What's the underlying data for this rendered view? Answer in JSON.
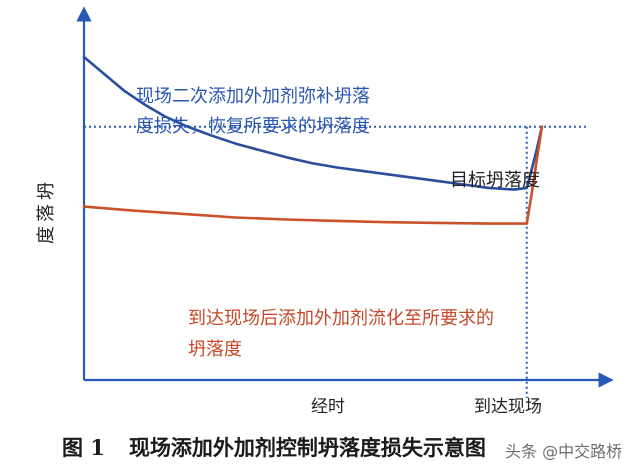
{
  "figure": {
    "number": "图 1",
    "title": "现场添加外加剂控制坍落度损失示意图"
  },
  "watermark": "头条 @中交路桥",
  "colors": {
    "axis": "#2a5ab8",
    "blue_series": "#2a4e9c",
    "red_series": "#c9522a",
    "blue_text": "#2a56b0",
    "red_text": "#c8482a",
    "target_line": "#2a5ab8",
    "text_dark": "#222222"
  },
  "chart_data": {
    "type": "line",
    "title": "",
    "xlabel": "经时",
    "ylabel": "坍落度",
    "x_ticks": [
      "到达现场"
    ],
    "xlim": [
      0,
      100
    ],
    "ylim": [
      0,
      100
    ],
    "grid": false,
    "reference_lines": [
      {
        "orientation": "horizontal",
        "value": 74.5,
        "label": "目标坍落度",
        "style": "dotted"
      },
      {
        "orientation": "vertical",
        "value": 87.5,
        "label": "到达现场",
        "style": "dotted"
      }
    ],
    "series": [
      {
        "color": "#2a4e9c",
        "x": [
          0,
          4,
          8,
          12,
          16,
          20,
          25,
          30,
          35,
          40,
          45,
          50,
          55,
          60,
          65,
          70,
          75,
          80,
          85,
          87.5,
          88.5,
          89.5,
          90.5
        ],
        "y": [
          95,
          90,
          85,
          81,
          77.5,
          74.8,
          72,
          69.5,
          67.5,
          65.5,
          63.8,
          62.5,
          61.5,
          60.5,
          59.5,
          58.5,
          57.5,
          56.5,
          56,
          56.5,
          62,
          68,
          74.5
        ]
      },
      {
        "color": "#c9522a",
        "x": [
          0,
          10,
          20,
          30,
          40,
          50,
          60,
          70,
          80,
          87.5,
          88.5,
          89.5,
          90.5
        ],
        "y": [
          51,
          49.8,
          48.8,
          47.8,
          47.2,
          46.8,
          46.4,
          46.2,
          46,
          46,
          55,
          65,
          74.5
        ]
      }
    ],
    "annotations": [
      {
        "text": [
          "现场二次添加外加剂弥补坍落",
          "度损失，恢复所要求的坍落度"
        ],
        "color": "#2a56b0",
        "series": "blue"
      },
      {
        "text": [
          "到达现场后添加外加剂流化至所要求的",
          "坍落度"
        ],
        "color": "#c8482a",
        "series": "red"
      }
    ]
  }
}
